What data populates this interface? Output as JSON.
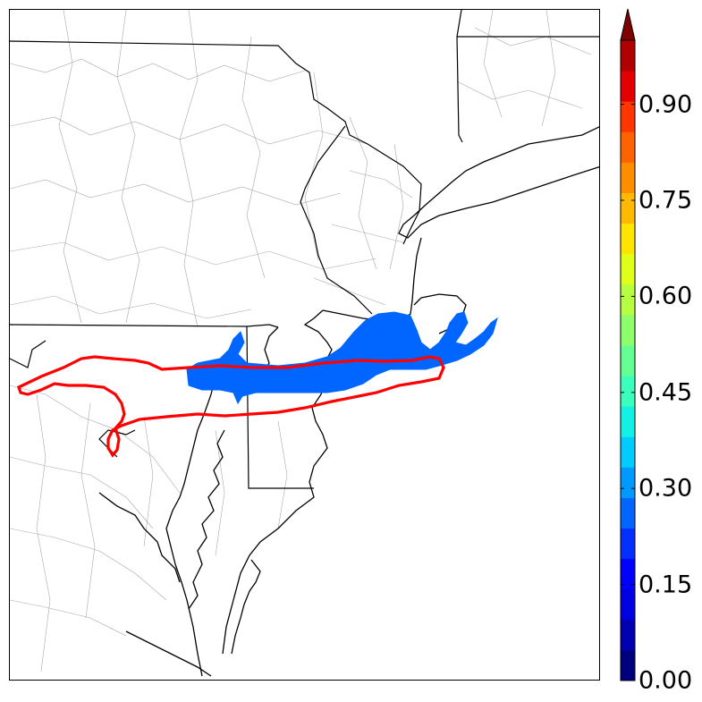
{
  "map": {
    "colors": {
      "state_border": "#000000",
      "county_border": "#9a9a9a",
      "coastline": "#000000",
      "contour_line": "#ff0000",
      "probability_fill": "#0066ff"
    },
    "contour_level_fill": 0.2
  },
  "colorbar": {
    "ticks": [
      "0.00",
      "0.15",
      "0.30",
      "0.45",
      "0.60",
      "0.75",
      "0.90"
    ],
    "min": 0.0,
    "max": 1.0,
    "extend": "max",
    "colors": [
      "#00007f",
      "#0000b0",
      "#0000e0",
      "#0000ff",
      "#0030ff",
      "#0066ff",
      "#0099ff",
      "#00ccff",
      "#12f2e4",
      "#3bffbc",
      "#64ff93",
      "#8cff6a",
      "#b6ff41",
      "#e0ff18",
      "#ffe500",
      "#ffb900",
      "#ff8d00",
      "#ff6200",
      "#ff3600",
      "#e40000",
      "#b00000",
      "#7f0000"
    ]
  }
}
